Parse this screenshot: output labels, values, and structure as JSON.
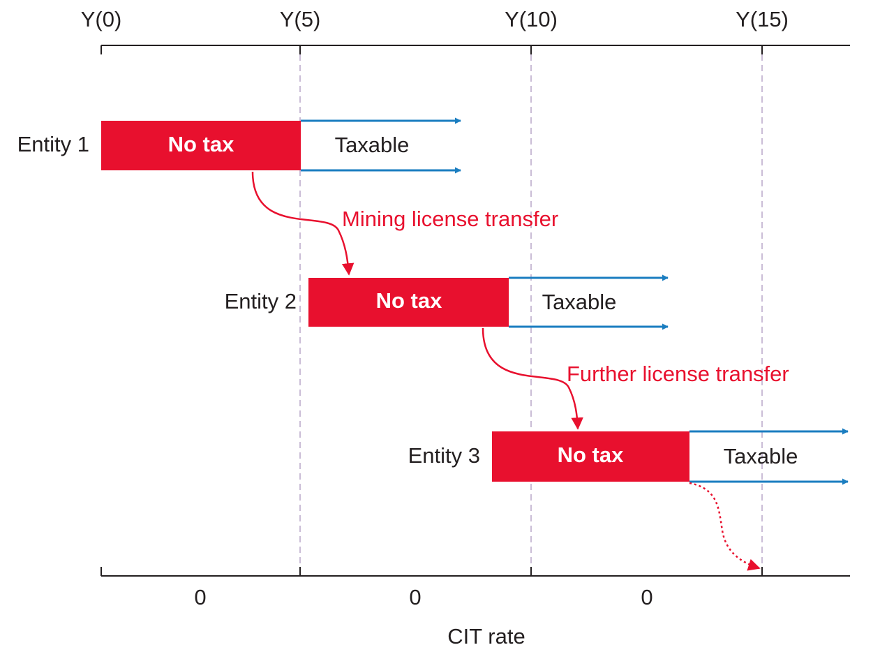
{
  "timeline": {
    "labels": [
      "Y(0)",
      "Y(5)",
      "Y(10)",
      "Y(15)"
    ]
  },
  "entities": [
    {
      "label": "Entity 1",
      "exempt": "No tax",
      "after": "Taxable"
    },
    {
      "label": "Entity 2",
      "exempt": "No tax",
      "after": "Taxable"
    },
    {
      "label": "Entity 3",
      "exempt": "No tax",
      "after": "Taxable"
    }
  ],
  "transfers": [
    "Mining license transfer",
    "Further license transfer"
  ],
  "rates": {
    "labels": [
      "0",
      "0",
      "0"
    ],
    "title": "CIT rate"
  }
}
